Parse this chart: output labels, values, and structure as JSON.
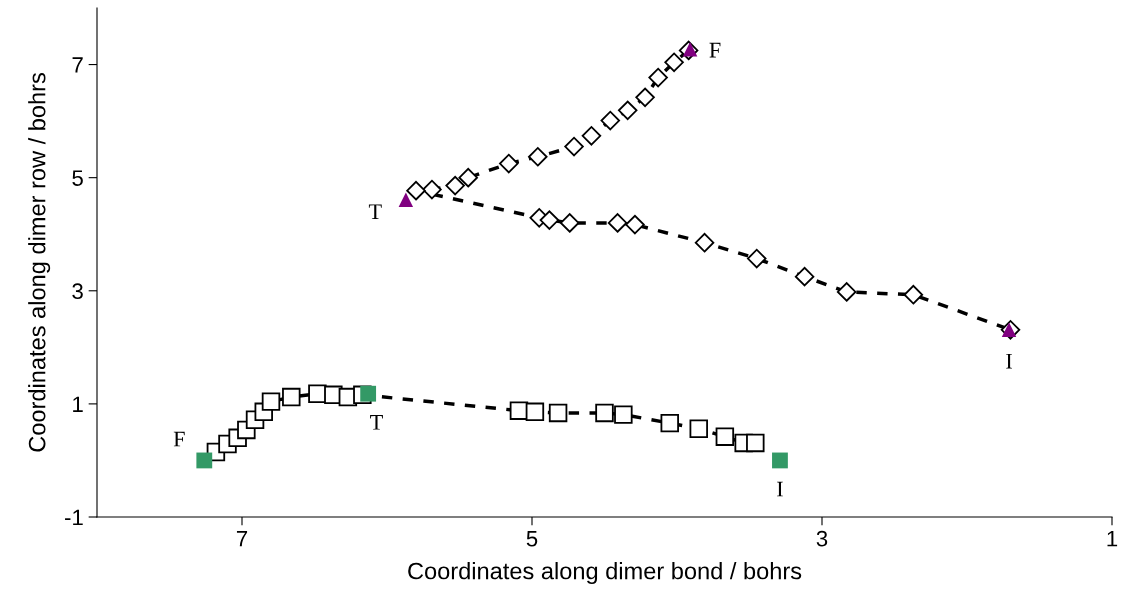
{
  "chart_data": {
    "type": "line",
    "xlabel": "Coordinates along dimer bond / bohrs",
    "ylabel": "Coordinates along dimer row / bohrs",
    "xlim": [
      8,
      1
    ],
    "xticks": [
      7,
      5,
      3,
      1
    ],
    "ylim": [
      -1,
      8
    ],
    "yticks": [
      -1,
      1,
      3,
      5,
      7
    ],
    "grid": false,
    "legend": false,
    "series": [
      {
        "marker": "diamond",
        "line_style": "dashed",
        "color": "#000000",
        "x": [
          3.92,
          4.02,
          4.13,
          4.22,
          4.34,
          4.46,
          4.59,
          4.71,
          4.96,
          5.16,
          5.44,
          5.53,
          5.69,
          5.8,
          4.95,
          4.88,
          4.74,
          4.41,
          4.29,
          3.81,
          3.45,
          3.12,
          2.83,
          2.37,
          1.7
        ],
        "values": [
          7.25,
          7.04,
          6.77,
          6.42,
          6.19,
          6.01,
          5.74,
          5.55,
          5.37,
          5.25,
          5.0,
          4.86,
          4.79,
          4.77,
          4.29,
          4.25,
          4.2,
          4.2,
          4.17,
          3.85,
          3.57,
          3.25,
          2.98,
          2.93,
          2.31
        ]
      },
      {
        "type": "scatter",
        "marker": "triangle",
        "color": "#800080",
        "x": [
          3.91,
          5.87,
          1.71
        ],
        "values": [
          7.27,
          4.61,
          2.31
        ]
      },
      {
        "marker": "square",
        "line_style": "dashed",
        "color": "#000000",
        "x": [
          7.18,
          7.1,
          7.03,
          6.97,
          6.91,
          6.85,
          6.8,
          6.66,
          6.48,
          6.37,
          6.27,
          6.17,
          5.09,
          4.98,
          4.82,
          4.5,
          4.37,
          4.05,
          3.85,
          3.67,
          3.54,
          3.46
        ],
        "values": [
          0.15,
          0.29,
          0.4,
          0.54,
          0.72,
          0.86,
          1.04,
          1.12,
          1.18,
          1.16,
          1.12,
          1.16,
          0.88,
          0.86,
          0.84,
          0.84,
          0.81,
          0.66,
          0.56,
          0.42,
          0.31,
          0.31
        ]
      },
      {
        "type": "scatter",
        "marker": "square",
        "color": "#339966",
        "x": [
          7.26,
          6.13,
          3.29
        ],
        "values": [
          0.0,
          1.18,
          0.0
        ]
      }
    ],
    "annotations": [
      {
        "text": "F",
        "x": 3.91,
        "y": 7.27
      },
      {
        "text": "T",
        "x": 5.87,
        "y": 4.61
      },
      {
        "text": "I",
        "x": 1.71,
        "y": 2.31
      },
      {
        "text": "F",
        "x": 7.26,
        "y": 0.0
      },
      {
        "text": "T",
        "x": 6.13,
        "y": 1.18
      },
      {
        "text": "I",
        "x": 3.29,
        "y": 0.0
      }
    ]
  }
}
